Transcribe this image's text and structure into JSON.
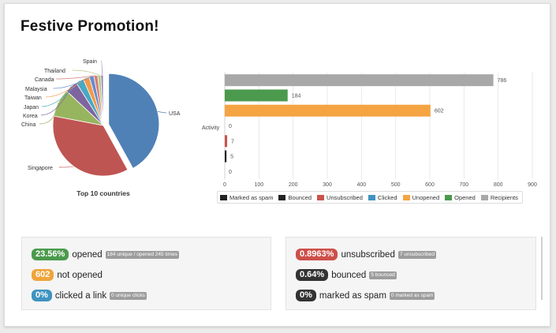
{
  "page": {
    "title": "Festive Promotion!"
  },
  "colors": {
    "marked_spam": "#222222",
    "bounced": "#222222",
    "unsubscribed": "#c9534e",
    "clicked": "#3f93c0",
    "unopened": "#f5a443",
    "opened": "#4b9a4d",
    "recipients": "#a8a8a8"
  },
  "chart_data": [
    {
      "type": "pie",
      "title": "Top 10 countries",
      "labels": [
        "USA",
        "Singapore",
        "China",
        "Korea",
        "Japan",
        "Taiwan",
        "Malaysia",
        "Canada",
        "Thailand",
        "Spain"
      ],
      "values": [
        42,
        36,
        9,
        4,
        2.5,
        2,
        1.5,
        1.2,
        1,
        0.8
      ],
      "colors": [
        "#4f81b7",
        "#bf5552",
        "#97b55f",
        "#7f65a0",
        "#4ba8c2",
        "#f29a4a",
        "#6b8cc9",
        "#d67b79",
        "#b0c97c",
        "#9a88bd"
      ],
      "exploded": [
        "USA"
      ]
    },
    {
      "type": "bar",
      "orientation": "horizontal",
      "ylabel": "Activity",
      "categories": [
        "Recipients",
        "Opened",
        "Unopened",
        "Clicked",
        "Unsubscribed",
        "Bounced",
        "Marked as spam"
      ],
      "values": [
        786,
        184,
        602,
        0,
        7,
        5,
        0
      ],
      "value_labels": [
        "786",
        "184",
        "602",
        "0",
        "7",
        "5",
        "0"
      ],
      "xlim": [
        0,
        900
      ],
      "xticks": [
        "0",
        "100",
        "200",
        "300",
        "400",
        "500",
        "600",
        "700",
        "800",
        "900"
      ],
      "grid": true,
      "legend": {
        "placement": "bottom",
        "items": [
          "Marked as spam",
          "Bounced",
          "Unsubscribed",
          "Clicked",
          "Unopened",
          "Opened",
          "Recipients"
        ]
      }
    }
  ],
  "stats": {
    "opened": {
      "pill": "23.56%",
      "label": "opened",
      "detail": "184 unique / opened 245 times"
    },
    "not_opened": {
      "pill": "602",
      "label": "not opened"
    },
    "clicked": {
      "pill": "0%",
      "label": "clicked a link",
      "detail": "0 unique clicks"
    },
    "unsubscribed": {
      "pill": "0.8963%",
      "label": "unsubscribed",
      "detail": "7 unsubscribed"
    },
    "bounced": {
      "pill": "0.64%",
      "label": "bounced",
      "detail": "5 bounced"
    },
    "spam": {
      "pill": "0%",
      "label": "marked as spam",
      "detail": "0 marked as spam"
    }
  }
}
